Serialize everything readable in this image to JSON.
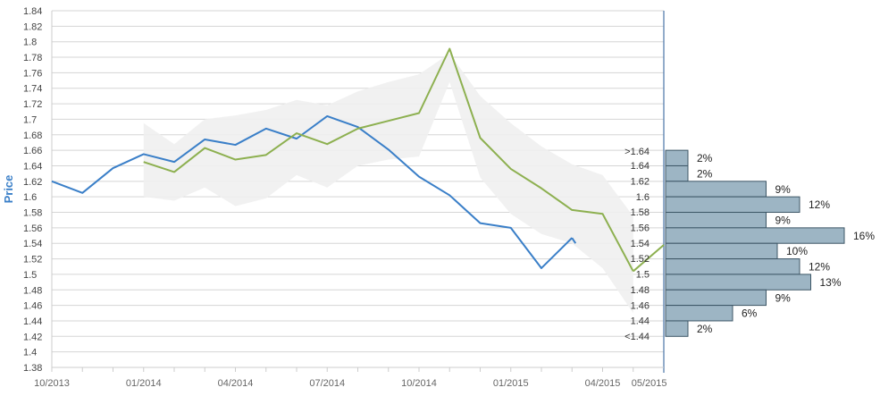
{
  "chart_data": {
    "type": "line",
    "ylabel": "Price",
    "ylim": [
      1.38,
      1.84
    ],
    "yticks": [
      "1.38",
      "1.4",
      "1.42",
      "1.44",
      "1.46",
      "1.48",
      "1.5",
      "1.52",
      "1.54",
      "1.56",
      "1.58",
      "1.6",
      "1.62",
      "1.64",
      "1.66",
      "1.68",
      "1.7",
      "1.72",
      "1.74",
      "1.76",
      "1.78",
      "1.8",
      "1.82",
      "1.84"
    ],
    "xticks": [
      "10/2013",
      "01/2014",
      "04/2014",
      "07/2014",
      "10/2014",
      "01/2015",
      "04/2015",
      "05/2015"
    ],
    "grid": true,
    "colors": {
      "blue": "#3a7fc8",
      "green": "#8db050",
      "band": "#efefef",
      "grid": "#d5d5d5",
      "hist_fill": "#9db5c4",
      "hist_stroke": "#3d5666"
    },
    "series": [
      {
        "color": "#3a7fc8",
        "x": [
          "2013-10",
          "2013-11",
          "2013-12",
          "2014-01",
          "2014-02",
          "2014-03",
          "2014-04",
          "2014-05",
          "2014-06",
          "2014-07",
          "2014-08",
          "2014-09",
          "2014-10",
          "2014-11",
          "2014-12",
          "2015-01",
          "2015-02",
          "2015-03"
        ],
        "y": [
          1.62,
          1.605,
          1.637,
          1.655,
          1.645,
          1.674,
          1.667,
          1.688,
          1.675,
          1.704,
          1.69,
          1.661,
          1.626,
          1.602,
          1.566,
          1.56,
          1.508,
          1.547
        ]
      },
      {
        "color": "#8db050",
        "x": [
          "2014-01",
          "2014-02",
          "2014-03",
          "2014-04",
          "2014-05",
          "2014-06",
          "2014-07",
          "2014-08",
          "2014-09",
          "2014-10",
          "2014-11",
          "2014-12",
          "2015-01",
          "2015-02",
          "2015-03",
          "2015-04",
          "2015-05"
        ],
        "y": [
          1.645,
          1.632,
          1.663,
          1.648,
          1.654,
          1.682,
          1.668,
          1.688,
          1.698,
          1.708,
          1.791,
          1.676,
          1.636,
          1.611,
          1.583,
          1.578,
          1.504
        ]
      }
    ],
    "band": {
      "x": [
        "2014-01",
        "2014-02",
        "2014-03",
        "2014-04",
        "2014-05",
        "2014-06",
        "2014-07",
        "2014-08",
        "2014-09",
        "2014-10",
        "2014-11",
        "2014-12",
        "2015-01",
        "2015-02",
        "2015-03",
        "2015-04",
        "2015-05"
      ],
      "upper": [
        1.695,
        1.668,
        1.7,
        1.705,
        1.712,
        1.725,
        1.718,
        1.736,
        1.748,
        1.758,
        1.785,
        1.73,
        1.695,
        1.665,
        1.642,
        1.628,
        1.575
      ],
      "lower": [
        1.6,
        1.595,
        1.612,
        1.588,
        1.598,
        1.628,
        1.612,
        1.64,
        1.648,
        1.652,
        1.748,
        1.625,
        1.578,
        1.552,
        1.54,
        1.508,
        1.45
      ]
    },
    "distribution": {
      "type": "bar",
      "orientation": "horizontal",
      "categories": [
        ">1.64",
        "1.64",
        "1.62",
        "1.6",
        "1.58",
        "1.56",
        "1.54",
        "1.52",
        "1.5",
        "1.48",
        "1.46",
        "1.44",
        "<1.44"
      ],
      "values": [
        2,
        2,
        9,
        12,
        9,
        16,
        10,
        12,
        13,
        9,
        6,
        2
      ],
      "labels": [
        "2%",
        "2%",
        "9%",
        "12%",
        "9%",
        "16%",
        "10%",
        "12%",
        "13%",
        "9%",
        "6%",
        "2%"
      ]
    }
  }
}
